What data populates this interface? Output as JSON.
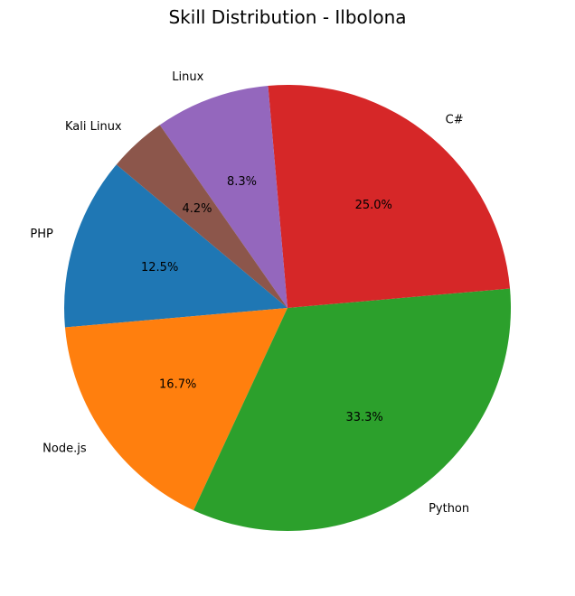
{
  "chart_data": {
    "type": "pie",
    "title": "Skill Distribution - Ilbolona",
    "categories": [
      "PHP",
      "Node.js",
      "Python",
      "C#",
      "Linux",
      "Kali Linux"
    ],
    "values": [
      12.5,
      16.7,
      33.3,
      25.0,
      8.3,
      4.2
    ],
    "percent_labels": [
      "12.5%",
      "16.7%",
      "33.3%",
      "25.0%",
      "8.3%",
      "4.2%"
    ],
    "colors": [
      "#1f77b4",
      "#ff7f0e",
      "#2ca02c",
      "#d62728",
      "#9467bd",
      "#8c564b"
    ],
    "start_angle_deg": 140,
    "direction": "counterclockwise"
  }
}
